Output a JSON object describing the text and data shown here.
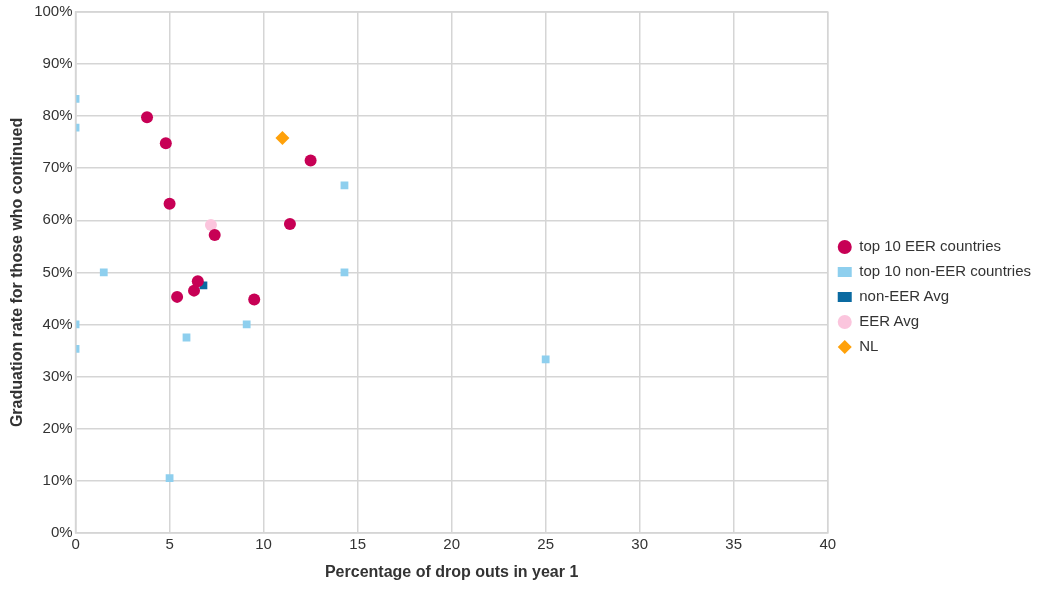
{
  "chart_data": {
    "type": "scatter",
    "xlabel": "Percentage of drop outs in year 1",
    "ylabel": "Graduation rate for those who continued",
    "xlim": [
      0,
      40
    ],
    "xticks": [
      0,
      5,
      10,
      15,
      20,
      25,
      30,
      35,
      40
    ],
    "ylim": [
      0,
      100
    ],
    "yticks": [
      {
        "value": 0,
        "label": "0%"
      },
      {
        "value": 10,
        "label": "10%"
      },
      {
        "value": 20,
        "label": "20%"
      },
      {
        "value": 30,
        "label": "30%"
      },
      {
        "value": 40,
        "label": "40%"
      },
      {
        "value": 50,
        "label": "50%"
      },
      {
        "value": 60,
        "label": "60%"
      },
      {
        "value": 70,
        "label": "70%"
      },
      {
        "value": 80,
        "label": "80%"
      },
      {
        "value": 90,
        "label": "90%"
      },
      {
        "value": 100,
        "label": "100%"
      }
    ],
    "grid": true,
    "legend": "right",
    "series": [
      {
        "name": "top 10 EER countries",
        "color": "#c70055",
        "marker": "circle",
        "x": [
          3.8,
          4.8,
          5,
          7.4,
          5.4,
          6.3,
          6.5,
          9.5,
          11.4,
          12.5
        ],
        "values": [
          79.8,
          74.8,
          63.2,
          57.2,
          45.3,
          46.5,
          48.3,
          44.8,
          59.3,
          71.5
        ]
      },
      {
        "name": "top 10 non-EER countries",
        "color": "#8ecfee",
        "marker": "square",
        "x": [
          0,
          0,
          1.5,
          0,
          0,
          5.9,
          9.1,
          14.3,
          14.3,
          5,
          25
        ],
        "values": [
          83.3,
          77.8,
          50,
          40,
          35.3,
          37.5,
          40,
          66.7,
          50,
          10.5,
          33.3
        ]
      },
      {
        "name": "non-EER Avg",
        "color": "#0a6aa1",
        "marker": "square",
        "x": [
          6.8
        ],
        "values": [
          47.5
        ]
      },
      {
        "name": "EER Avg",
        "color": "#fbc5dd",
        "marker": "circle",
        "x": [
          7.2
        ],
        "values": [
          59.1
        ]
      },
      {
        "name": "NL",
        "color": "#ffa10a",
        "marker": "diamond",
        "x": [
          11
        ],
        "values": [
          75.8
        ]
      }
    ]
  }
}
